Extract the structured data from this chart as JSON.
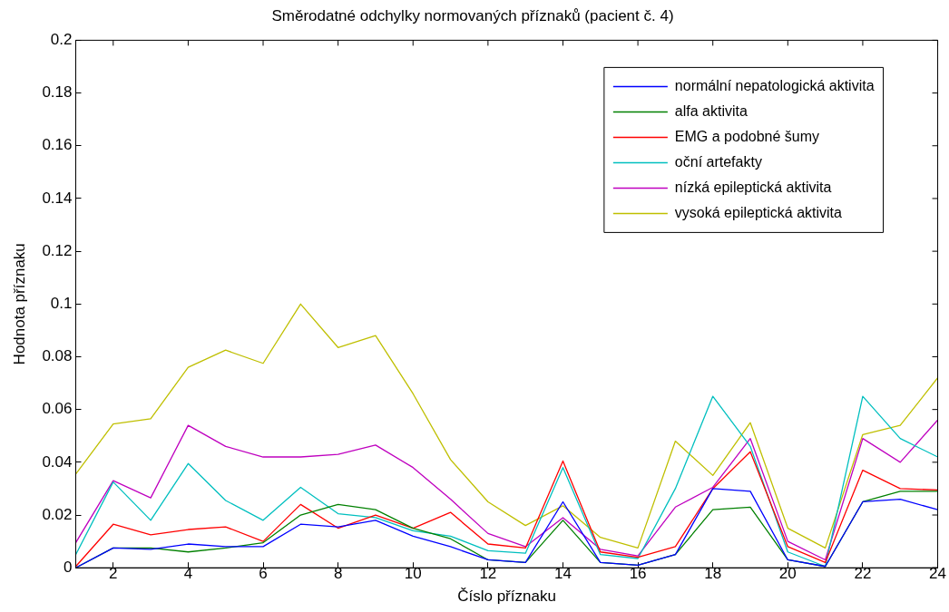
{
  "chart_data": {
    "type": "line",
    "title": "Směrodatné odchylky normovaných příznaků (pacient č. 4)",
    "xlabel": "Číslo příznaku",
    "ylabel": "Hodnota příznaku",
    "x": [
      1,
      2,
      3,
      4,
      5,
      6,
      7,
      8,
      9,
      10,
      11,
      12,
      13,
      14,
      15,
      16,
      17,
      18,
      19,
      20,
      21,
      22,
      23,
      24
    ],
    "xlim": [
      1,
      24
    ],
    "xticks": [
      2,
      4,
      6,
      8,
      10,
      12,
      14,
      16,
      18,
      20,
      22,
      24
    ],
    "ylim": [
      0,
      0.2
    ],
    "yticks": [
      0,
      0.02,
      0.04,
      0.06,
      0.08,
      0.1,
      0.12,
      0.14,
      0.16,
      0.18,
      0.2
    ],
    "grid": false,
    "legend": "top right",
    "marker": "none",
    "line_style": "solid",
    "series": [
      {
        "name": "normální nepatologická aktivita",
        "color": "#0000ff",
        "values": [
          0,
          0.0075,
          0.007,
          0.009,
          0.008,
          0.008,
          0.0165,
          0.0155,
          0.018,
          0.012,
          0.008,
          0.003,
          0.002,
          0.025,
          0.002,
          0.001,
          0.005,
          0.03,
          0.029,
          0.003,
          0.0005,
          0.025,
          0.026,
          0.022
        ]
      },
      {
        "name": "alfa aktivita",
        "color": "#008000",
        "values": [
          0,
          0.0075,
          0.0075,
          0.006,
          0.0075,
          0.0095,
          0.02,
          0.024,
          0.022,
          0.015,
          0.011,
          0.003,
          0.002,
          0.018,
          0.002,
          0.001,
          0.005,
          0.022,
          0.023,
          0.003,
          0.0005,
          0.025,
          0.029,
          0.029
        ]
      },
      {
        "name": "EMG a podobné šumy",
        "color": "#ff0000",
        "values": [
          0.0005,
          0.0165,
          0.0125,
          0.0145,
          0.0155,
          0.01,
          0.024,
          0.015,
          0.02,
          0.015,
          0.021,
          0.009,
          0.0075,
          0.0405,
          0.006,
          0.004,
          0.008,
          0.03,
          0.044,
          0.008,
          0.002,
          0.037,
          0.03,
          0.0295
        ]
      },
      {
        "name": "oční artefakty",
        "color": "#00bfbf",
        "values": [
          0.005,
          0.0325,
          0.018,
          0.0395,
          0.0255,
          0.018,
          0.0305,
          0.0205,
          0.019,
          0.014,
          0.012,
          0.0065,
          0.0055,
          0.038,
          0.005,
          0.0035,
          0.03,
          0.065,
          0.046,
          0.006,
          0.0005,
          0.065,
          0.049,
          0.042
        ]
      },
      {
        "name": "nízká epileptická aktivita",
        "color": "#bf00bf",
        "values": [
          0.0095,
          0.033,
          0.0265,
          0.054,
          0.046,
          0.042,
          0.042,
          0.043,
          0.0465,
          0.038,
          0.026,
          0.013,
          0.008,
          0.019,
          0.007,
          0.0045,
          0.023,
          0.0305,
          0.049,
          0.01,
          0.003,
          0.049,
          0.04,
          0.056
        ]
      },
      {
        "name": "vysoká epileptická aktivita",
        "color": "#bfbf00",
        "values": [
          0.0355,
          0.0545,
          0.0565,
          0.076,
          0.0825,
          0.0775,
          0.1,
          0.0835,
          0.088,
          0.066,
          0.041,
          0.025,
          0.016,
          0.0235,
          0.0115,
          0.0075,
          0.048,
          0.035,
          0.055,
          0.015,
          0.0075,
          0.0505,
          0.054,
          0.072
        ]
      }
    ]
  }
}
